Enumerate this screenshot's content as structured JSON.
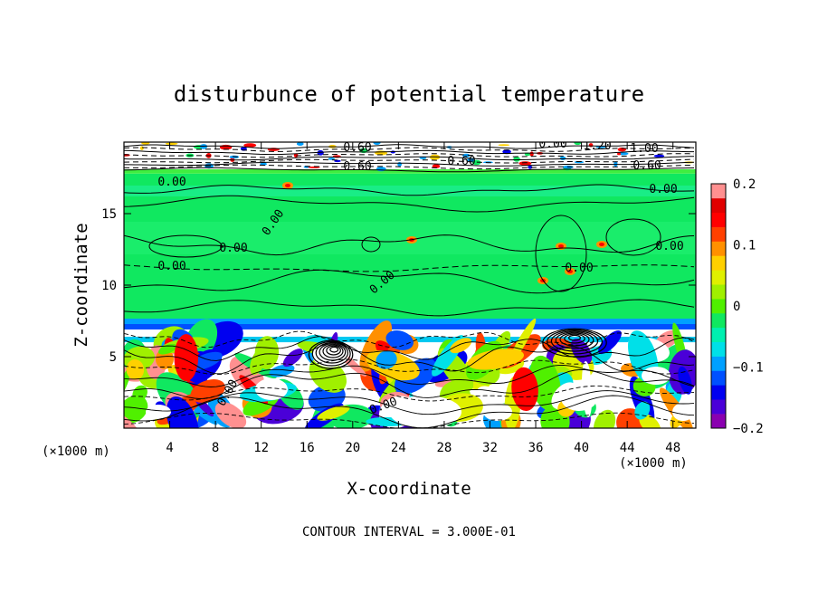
{
  "chart_data": {
    "type": "heatmap",
    "title": "disturbunce of potential temperature",
    "xlabel": "X-coordinate",
    "ylabel": "Z-coordinate",
    "x_units_label": "(×1000 m)",
    "y_units_label": "(×1000 m)",
    "xlim": [
      0,
      50
    ],
    "ylim": [
      0,
      20
    ],
    "x_ticks": [
      4,
      8,
      12,
      16,
      20,
      24,
      28,
      32,
      36,
      40,
      44,
      48
    ],
    "x_tick_labels": [
      "4",
      "8",
      "12",
      "16",
      "20",
      "24",
      "28",
      "32",
      "36",
      "40",
      "44",
      "48"
    ],
    "y_ticks": [
      5,
      10,
      15
    ],
    "y_tick_labels": [
      "5",
      "10",
      "15"
    ],
    "colorbar": {
      "min": -0.2,
      "max": 0.2,
      "ticks": [
        0.2,
        0.1,
        0,
        -0.1,
        -0.2
      ],
      "tick_labels": [
        "0.2",
        "0.1",
        "0",
        "−0.1",
        "−0.2"
      ],
      "colors": [
        "#8a00b0",
        "#4a00d8",
        "#0000f0",
        "#0050ff",
        "#00a0ff",
        "#00e0e8",
        "#00f0b0",
        "#10e860",
        "#50f000",
        "#a0f000",
        "#e0f000",
        "#ffd000",
        "#ff9000",
        "#ff4000",
        "#ff0000",
        "#e00000",
        "#ff9090"
      ]
    },
    "contour_interval_text": "CONTOUR INTERVAL = 3.000E-01",
    "contour_labels": [
      "0.60",
      "0.60",
      "0.60",
      "0.00",
      "1.20",
      "1.00",
      "0.60",
      "0.00",
      "0.00",
      "0.00",
      "0.00",
      "0.00",
      "0.00",
      "0.00",
      "0.00",
      "0.00",
      "0.00"
    ],
    "background_regions": [
      {
        "x0": 0,
        "x1": 50,
        "y0": 7.0,
        "y1": 17.8,
        "value": 0.0
      },
      {
        "x0": 0,
        "x1": 50,
        "y0": 17.8,
        "y1": 20.0,
        "value": 0.0
      },
      {
        "x0": 0,
        "x1": 50,
        "y0": 6.0,
        "y1": 7.0,
        "value": -0.05
      },
      {
        "x0": 0,
        "x1": 50,
        "y0": 0.0,
        "y1": 6.0,
        "value": 0.0
      }
    ]
  }
}
